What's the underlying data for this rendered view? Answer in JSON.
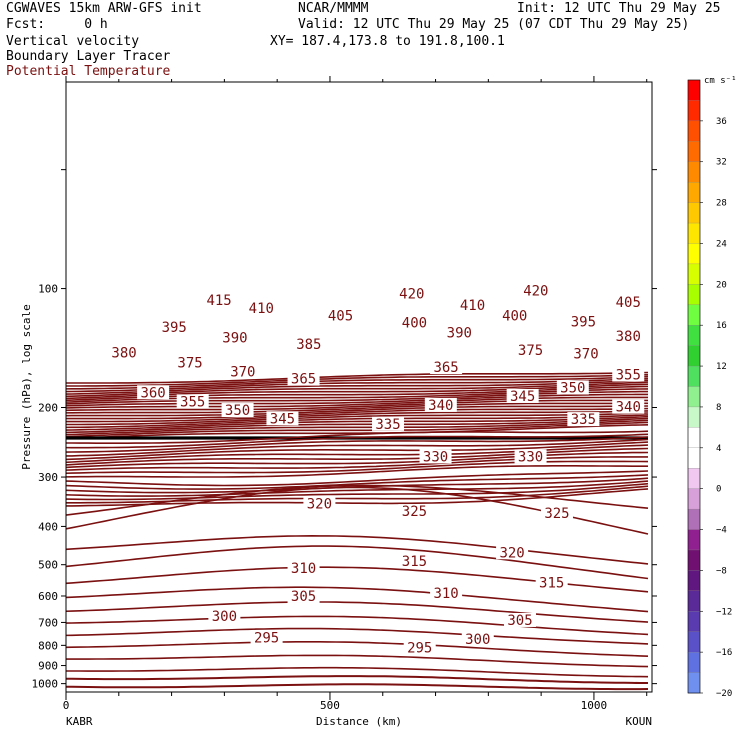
{
  "header": {
    "model": "CGWAVES 15km ARW-GFS init",
    "fcst": "Fcst:     0 h",
    "org": "NCAR/MMMM",
    "init": "Init: 12 UTC Thu 29 May 25",
    "valid": "Valid: 12 UTC Thu 29 May 25 (07 CDT Thu 29 May 25)",
    "xy": "XY= 187.4,173.8 to 191.8,100.1",
    "field1": "Vertical velocity",
    "field2": "Boundary Layer Tracer",
    "field3": "Potential Temperature"
  },
  "colors": {
    "contour": "#7b1010",
    "tropopause": "#000000"
  },
  "chart_data": {
    "type": "line",
    "xlabel": "Distance (km)",
    "ylabel": "Pressure (hPa), log scale",
    "xlim": [
      0,
      1110
    ],
    "ylim": [
      1050,
      30
    ],
    "y_scale": "log",
    "x_ticks": [
      0,
      500,
      1000
    ],
    "y_ticks": [
      100,
      200,
      300,
      400,
      500,
      600,
      700,
      800,
      900,
      1000
    ],
    "x_endpoints": {
      "left": "KABR",
      "right": "KOUN"
    },
    "contour_labels": [
      {
        "text": "415",
        "x": 290,
        "p": 107
      },
      {
        "text": "410",
        "x": 370,
        "p": 112
      },
      {
        "text": "420",
        "x": 655,
        "p": 103
      },
      {
        "text": "420",
        "x": 890,
        "p": 101
      },
      {
        "text": "410",
        "x": 770,
        "p": 110
      },
      {
        "text": "405",
        "x": 520,
        "p": 117
      },
      {
        "text": "405",
        "x": 1065,
        "p": 108
      },
      {
        "text": "400",
        "x": 660,
        "p": 122
      },
      {
        "text": "400",
        "x": 850,
        "p": 117
      },
      {
        "text": "395",
        "x": 205,
        "p": 125
      },
      {
        "text": "395",
        "x": 980,
        "p": 121
      },
      {
        "text": "390",
        "x": 320,
        "p": 133
      },
      {
        "text": "390",
        "x": 745,
        "p": 129
      },
      {
        "text": "385",
        "x": 460,
        "p": 138
      },
      {
        "text": "380",
        "x": 110,
        "p": 145
      },
      {
        "text": "380",
        "x": 1065,
        "p": 132
      },
      {
        "text": "375",
        "x": 235,
        "p": 154
      },
      {
        "text": "375",
        "x": 880,
        "p": 143
      },
      {
        "text": "370",
        "x": 335,
        "p": 162
      },
      {
        "text": "370",
        "x": 985,
        "p": 146
      },
      {
        "text": "365",
        "x": 450,
        "p": 169
      },
      {
        "text": "365",
        "x": 720,
        "p": 158
      },
      {
        "text": "360",
        "x": 165,
        "p": 183
      },
      {
        "text": "355",
        "x": 240,
        "p": 193
      },
      {
        "text": "355",
        "x": 1065,
        "p": 165
      },
      {
        "text": "350",
        "x": 325,
        "p": 203
      },
      {
        "text": "350",
        "x": 960,
        "p": 178
      },
      {
        "text": "345",
        "x": 410,
        "p": 213
      },
      {
        "text": "345",
        "x": 865,
        "p": 187
      },
      {
        "text": "340",
        "x": 710,
        "p": 197
      },
      {
        "text": "340",
        "x": 1065,
        "p": 199
      },
      {
        "text": "335",
        "x": 610,
        "p": 220
      },
      {
        "text": "335",
        "x": 980,
        "p": 214
      },
      {
        "text": "330",
        "x": 700,
        "p": 266
      },
      {
        "text": "330",
        "x": 880,
        "p": 266
      },
      {
        "text": "325",
        "x": 660,
        "p": 366
      },
      {
        "text": "325",
        "x": 930,
        "p": 370
      },
      {
        "text": "320",
        "x": 480,
        "p": 350
      },
      {
        "text": "320",
        "x": 845,
        "p": 465
      },
      {
        "text": "315",
        "x": 660,
        "p": 490
      },
      {
        "text": "315",
        "x": 920,
        "p": 555
      },
      {
        "text": "310",
        "x": 450,
        "p": 510
      },
      {
        "text": "310",
        "x": 720,
        "p": 590
      },
      {
        "text": "305",
        "x": 450,
        "p": 600
      },
      {
        "text": "305",
        "x": 860,
        "p": 690
      },
      {
        "text": "300",
        "x": 300,
        "p": 675
      },
      {
        "text": "300",
        "x": 780,
        "p": 770
      },
      {
        "text": "295",
        "x": 380,
        "p": 765
      },
      {
        "text": "295",
        "x": 670,
        "p": 810
      }
    ],
    "colorbar": {
      "unit": "cm s⁻¹",
      "labels": [
        "36",
        "32",
        "28",
        "24",
        "20",
        "16",
        "12",
        "8",
        "4",
        "0",
        "−4",
        "−8",
        "−12",
        "−16",
        "−20"
      ],
      "colors": [
        "#ff0000",
        "#ff2a00",
        "#ff4f00",
        "#ff6b00",
        "#ff8a00",
        "#ffa800",
        "#ffc800",
        "#ffe600",
        "#ffff00",
        "#d8ff00",
        "#a8ff00",
        "#70ff40",
        "#40e040",
        "#30d030",
        "#50e060",
        "#90f090",
        "#c8f8c8",
        "#ffffff",
        "#ffffff",
        "#f0c8f0",
        "#d8a0d8",
        "#b070b8",
        "#902090",
        "#701070",
        "#601880",
        "#5a2a98",
        "#5a3cb0",
        "#5a50c8",
        "#5f70e0",
        "#7090f0"
      ]
    }
  }
}
